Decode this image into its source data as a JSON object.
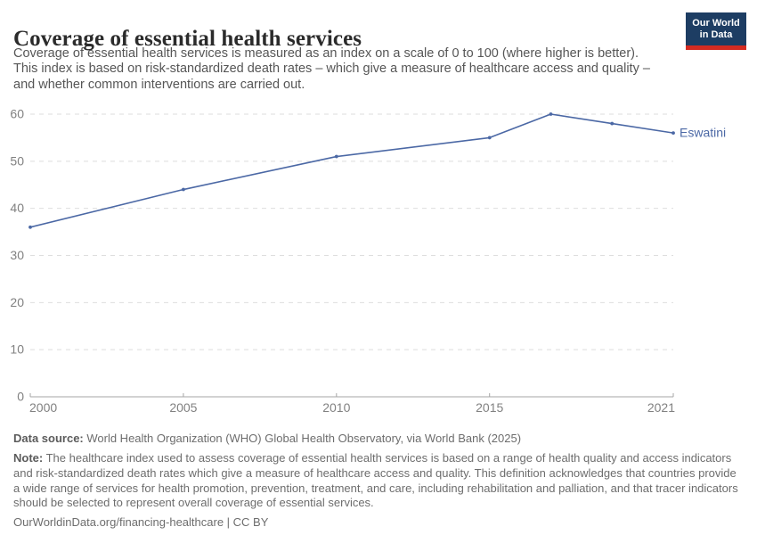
{
  "header": {
    "title": "Coverage of essential health services",
    "subtitle_lines": [
      "Coverage of essential health services is measured as an index on a scale of 0 to 100 (where higher is better).",
      "This index is based on risk-standardized death rates – which give a measure of healthcare access and quality –",
      "and whether common interventions are carried out."
    ]
  },
  "logo": {
    "text_lines": [
      "Our World",
      "in Data"
    ],
    "background_color": "#1d3d63",
    "accent_color": "#d42b21"
  },
  "chart_data": {
    "type": "line",
    "title": "Coverage of essential health services",
    "series": [
      {
        "name": "Eswatini",
        "x": [
          2000,
          2005,
          2010,
          2015,
          2017,
          2019,
          2021
        ],
        "values": [
          36,
          44,
          51,
          55,
          60,
          58,
          56
        ]
      }
    ],
    "x_ticks": [
      2000,
      2005,
      2010,
      2015,
      2021
    ],
    "y_ticks": [
      0,
      10,
      20,
      30,
      40,
      50,
      60
    ],
    "xlim": [
      2000,
      2021
    ],
    "ylim": [
      0,
      60
    ],
    "grid": "horizontal-dashed",
    "legend_position": "end-of-line",
    "entity_label": "Eswatini",
    "line_color": "#4b68a5",
    "gridline_color": "#dedede",
    "axis_color": "#a5a5a5",
    "tick_label_color": "#818181"
  },
  "footer": {
    "datasource_label": "Data source:",
    "datasource_text": " World Health Organization (WHO) Global Health Observatory, via World Bank (2025)",
    "note_label": "Note:",
    "note_lines": [
      " The healthcare index used to assess coverage of essential health services is based on a range of health quality and access indicators",
      "and risk-standardized death rates which give a measure of healthcare access and quality. This definition acknowledges that countries provide",
      "a wide range of services for health promotion, prevention, treatment, and care, including rehabilitation and palliation, and that tracer indicators",
      "should be selected to represent overall coverage of essential services."
    ],
    "url_link": "OurWorldinData.org/financing-healthcare",
    "license_text": " | CC BY"
  }
}
